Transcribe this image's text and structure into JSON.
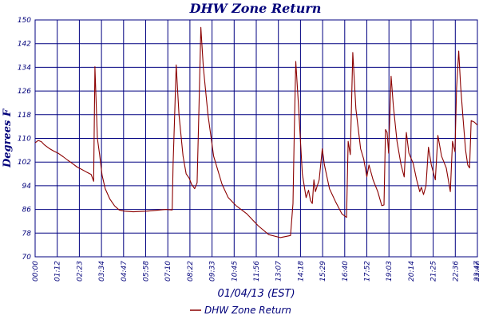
{
  "chart_data": {
    "type": "line",
    "title": "DHW Zone Return",
    "xlabel": "01/04/13 (EST)",
    "ylabel": "Degrees F",
    "ylim": [
      70,
      150
    ],
    "yticks": [
      70,
      78,
      86,
      94,
      102,
      110,
      118,
      126,
      134,
      142,
      150
    ],
    "xlim": [
      "00:00",
      "23:40"
    ],
    "xtick_labels": [
      "00:00",
      "01:12",
      "02:23",
      "03:34",
      "04:47",
      "05:58",
      "07:10",
      "08:22",
      "09:33",
      "10:45",
      "11:56",
      "13:07",
      "14:18",
      "15:29",
      "16:40",
      "17:52",
      "19:03",
      "20:14",
      "21:25",
      "22:36",
      "23:47",
      "23:40"
    ],
    "grid": true,
    "legend_position": "bottom-center",
    "series": [
      {
        "name": "DHW Zone Return",
        "color": "#8b0000",
        "points": [
          [
            "00:00",
            108.5
          ],
          [
            "00:10",
            109.3
          ],
          [
            "00:20",
            108.9
          ],
          [
            "00:30",
            107.8
          ],
          [
            "00:45",
            106.6
          ],
          [
            "01:00",
            105.7
          ],
          [
            "01:15",
            104.9
          ],
          [
            "01:30",
            103.8
          ],
          [
            "01:45",
            102.6
          ],
          [
            "02:00",
            101.5
          ],
          [
            "02:15",
            100.3
          ],
          [
            "02:30",
            99.5
          ],
          [
            "02:45",
            98.6
          ],
          [
            "03:00",
            97.8
          ],
          [
            "03:08",
            95.5
          ],
          [
            "03:12",
            134.2
          ],
          [
            "03:20",
            110.0
          ],
          [
            "03:27",
            104.5
          ],
          [
            "03:35",
            97.5
          ],
          [
            "03:45",
            93.0
          ],
          [
            "04:00",
            89.5
          ],
          [
            "04:15",
            87.2
          ],
          [
            "04:30",
            85.8
          ],
          [
            "04:47",
            85.4
          ],
          [
            "05:15",
            85.2
          ],
          [
            "05:58",
            85.4
          ],
          [
            "06:30",
            85.7
          ],
          [
            "07:00",
            86.0
          ],
          [
            "07:20",
            85.8
          ],
          [
            "07:23",
            101.0
          ],
          [
            "07:28",
            118.0
          ],
          [
            "07:33",
            134.8
          ],
          [
            "07:42",
            118.0
          ],
          [
            "07:55",
            104.0
          ],
          [
            "08:05",
            98.0
          ],
          [
            "08:15",
            96.5
          ],
          [
            "08:22",
            94.5
          ],
          [
            "08:32",
            93.0
          ],
          [
            "08:40",
            95.0
          ],
          [
            "08:46",
            120.0
          ],
          [
            "08:52",
            147.5
          ],
          [
            "09:00",
            134.0
          ],
          [
            "09:15",
            118.0
          ],
          [
            "09:33",
            104.0
          ],
          [
            "10:00",
            94.5
          ],
          [
            "10:20",
            90.0
          ],
          [
            "10:45",
            87.3
          ],
          [
            "11:20",
            84.5
          ],
          [
            "11:56",
            80.5
          ],
          [
            "12:30",
            77.5
          ],
          [
            "13:07",
            76.5
          ],
          [
            "13:40",
            77.2
          ],
          [
            "13:48",
            88.0
          ],
          [
            "13:52",
            112.0
          ],
          [
            "13:57",
            136.0
          ],
          [
            "14:05",
            122.0
          ],
          [
            "14:18",
            98.0
          ],
          [
            "14:30",
            90.0
          ],
          [
            "14:38",
            92.5
          ],
          [
            "14:44",
            89.0
          ],
          [
            "14:50",
            88.0
          ],
          [
            "14:55",
            96.0
          ],
          [
            "15:00",
            92.0
          ],
          [
            "15:12",
            96.0
          ],
          [
            "15:22",
            106.5
          ],
          [
            "15:29",
            101.0
          ],
          [
            "15:45",
            93.0
          ],
          [
            "16:05",
            88.5
          ],
          [
            "16:25",
            84.5
          ],
          [
            "16:40",
            83.3
          ],
          [
            "16:45",
            109.0
          ],
          [
            "16:52",
            104.5
          ],
          [
            "17:00",
            139.0
          ],
          [
            "17:10",
            120.0
          ],
          [
            "17:25",
            106.5
          ],
          [
            "17:35",
            103.0
          ],
          [
            "17:45",
            97.0
          ],
          [
            "17:52",
            101.0
          ],
          [
            "18:05",
            96.0
          ],
          [
            "18:20",
            92.0
          ],
          [
            "18:33",
            87.3
          ],
          [
            "18:40",
            87.5
          ],
          [
            "18:45",
            113.0
          ],
          [
            "18:50",
            112.0
          ],
          [
            "18:55",
            105.0
          ],
          [
            "19:03",
            131.0
          ],
          [
            "19:10",
            121.0
          ],
          [
            "19:22",
            109.0
          ],
          [
            "19:35",
            101.0
          ],
          [
            "19:45",
            97.0
          ],
          [
            "19:52",
            112.0
          ],
          [
            "20:00",
            105.0
          ],
          [
            "20:14",
            101.5
          ],
          [
            "20:25",
            96.0
          ],
          [
            "20:35",
            92.0
          ],
          [
            "20:40",
            93.5
          ],
          [
            "20:47",
            91.0
          ],
          [
            "20:55",
            94.0
          ],
          [
            "21:03",
            107.0
          ],
          [
            "21:12",
            101.0
          ],
          [
            "21:25",
            96.0
          ],
          [
            "21:33",
            111.0
          ],
          [
            "21:45",
            104.0
          ],
          [
            "22:00",
            100.0
          ],
          [
            "22:13",
            92.0
          ],
          [
            "22:20",
            109.0
          ],
          [
            "22:28",
            105.5
          ],
          [
            "22:33",
            127.0
          ],
          [
            "22:40",
            139.5
          ],
          [
            "22:46",
            128.0
          ],
          [
            "22:54",
            116.5
          ],
          [
            "23:02",
            106.0
          ],
          [
            "23:09",
            101.0
          ],
          [
            "23:15",
            100.0
          ],
          [
            "23:20",
            116.0
          ],
          [
            "23:30",
            115.5
          ],
          [
            "23:40",
            114.5
          ]
        ]
      }
    ]
  }
}
